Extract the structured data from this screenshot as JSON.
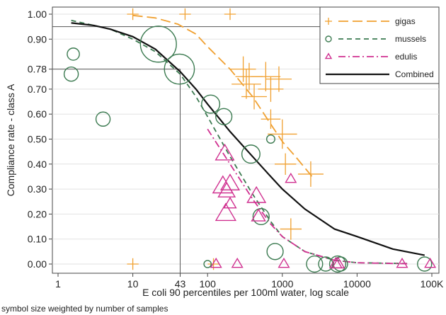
{
  "chart_data": {
    "type": "scatter",
    "x_scale": "log",
    "xlabel": "E coli 90 percentiles per 100ml water, log scale",
    "ylabel": "Compliance rate - class A",
    "note": "symbol size weighted by number of samples",
    "xlim": [
      1,
      100000
    ],
    "ylim": [
      0,
      1
    ],
    "grid": true,
    "legend_position": "top-right",
    "x_ticks": [
      {
        "value": 1,
        "label": "1"
      },
      {
        "value": 10,
        "label": "10"
      },
      {
        "value": 43,
        "label": "43"
      },
      {
        "value": 100,
        "label": "100"
      },
      {
        "value": 1000,
        "label": "1000"
      },
      {
        "value": 10000,
        "label": "10000"
      },
      {
        "value": 100000,
        "label": "100K"
      }
    ],
    "y_ticks": [
      {
        "value": 0.0,
        "label": "0.00"
      },
      {
        "value": 0.1,
        "label": "0.10"
      },
      {
        "value": 0.2,
        "label": "0.20"
      },
      {
        "value": 0.3,
        "label": "0.30"
      },
      {
        "value": 0.4,
        "label": "0.40"
      },
      {
        "value": 0.5,
        "label": "0.50"
      },
      {
        "value": 0.6,
        "label": "0.60"
      },
      {
        "value": 0.7,
        "label": "0.70"
      },
      {
        "value": 0.78,
        "label": "0.78"
      },
      {
        "value": 0.9,
        "label": "0.90"
      },
      {
        "value": 1.0,
        "label": "1.00"
      }
    ],
    "reference_lines": {
      "horizontal": [
        0.95,
        0.78
      ],
      "vertical": [
        43
      ]
    },
    "series": [
      {
        "name": "gigas",
        "marker": "plus",
        "color": "#f0a030",
        "points": [
          {
            "x": 10,
            "y": 1.0,
            "w": 0.3
          },
          {
            "x": 50,
            "y": 1.0,
            "w": 0.3
          },
          {
            "x": 200,
            "y": 1.0,
            "w": 0.3
          },
          {
            "x": 10,
            "y": 0.0,
            "w": 0.3
          },
          {
            "x": 120,
            "y": 0.0,
            "w": 0.3
          },
          {
            "x": 300,
            "y": 0.78,
            "w": 1.0
          },
          {
            "x": 360,
            "y": 0.75,
            "w": 1.1
          },
          {
            "x": 330,
            "y": 0.72,
            "w": 1.2
          },
          {
            "x": 420,
            "y": 0.67,
            "w": 1.0
          },
          {
            "x": 600,
            "y": 0.75,
            "w": 1.2
          },
          {
            "x": 700,
            "y": 0.7,
            "w": 1.0
          },
          {
            "x": 900,
            "y": 0.74,
            "w": 1.0
          },
          {
            "x": 1000,
            "y": 0.52,
            "w": 1.2
          },
          {
            "x": 1100,
            "y": 0.4,
            "w": 0.8
          },
          {
            "x": 2400,
            "y": 0.36,
            "w": 1.0
          },
          {
            "x": 1300,
            "y": 0.14,
            "w": 0.8
          },
          {
            "x": 700,
            "y": 0.58,
            "w": 0.7
          }
        ]
      },
      {
        "name": "mussels",
        "marker": "circle",
        "color": "#3b7a50",
        "points": [
          {
            "x": 1.6,
            "y": 0.84,
            "w": 0.4
          },
          {
            "x": 1.5,
            "y": 0.76,
            "w": 0.5
          },
          {
            "x": 4.0,
            "y": 0.58,
            "w": 0.5
          },
          {
            "x": 22,
            "y": 0.88,
            "w": 1.6
          },
          {
            "x": 42,
            "y": 0.78,
            "w": 1.3
          },
          {
            "x": 110,
            "y": 0.64,
            "w": 0.7
          },
          {
            "x": 165,
            "y": 0.59,
            "w": 0.6
          },
          {
            "x": 380,
            "y": 0.44,
            "w": 0.7
          },
          {
            "x": 700,
            "y": 0.5,
            "w": 0.2
          },
          {
            "x": 520,
            "y": 0.19,
            "w": 0.6
          },
          {
            "x": 800,
            "y": 0.05,
            "w": 0.6
          },
          {
            "x": 2700,
            "y": 0.0,
            "w": 0.6
          },
          {
            "x": 3800,
            "y": 0.0,
            "w": 0.5
          },
          {
            "x": 5500,
            "y": 0.0,
            "w": 0.6
          },
          {
            "x": 6000,
            "y": 0.0,
            "w": 0.5
          },
          {
            "x": 80000,
            "y": 0.0,
            "w": 0.5
          },
          {
            "x": 100,
            "y": 0.0,
            "w": 0.15
          }
        ]
      },
      {
        "name": "edulis",
        "marker": "triangle",
        "color": "#d03090",
        "points": [
          {
            "x": 170,
            "y": 0.44,
            "w": 0.8
          },
          {
            "x": 160,
            "y": 0.31,
            "w": 0.9
          },
          {
            "x": 200,
            "y": 0.32,
            "w": 0.8
          },
          {
            "x": 180,
            "y": 0.29,
            "w": 0.7
          },
          {
            "x": 175,
            "y": 0.2,
            "w": 0.9
          },
          {
            "x": 450,
            "y": 0.27,
            "w": 0.8
          },
          {
            "x": 200,
            "y": 0.24,
            "w": 0.4
          },
          {
            "x": 480,
            "y": 0.19,
            "w": 0.5
          },
          {
            "x": 1300,
            "y": 0.34,
            "w": 0.3
          },
          {
            "x": 130,
            "y": 0.0,
            "w": 0.3
          },
          {
            "x": 250,
            "y": 0.0,
            "w": 0.3
          },
          {
            "x": 1050,
            "y": 0.0,
            "w": 0.3
          },
          {
            "x": 5200,
            "y": 0.0,
            "w": 0.4
          },
          {
            "x": 5600,
            "y": 0.0,
            "w": 0.4
          },
          {
            "x": 40000,
            "y": 0.0,
            "w": 0.3
          },
          {
            "x": 95000,
            "y": 0.0,
            "w": 0.3
          }
        ]
      }
    ],
    "curves": [
      {
        "name": "gigas",
        "dash": "long",
        "color": "#f0a030",
        "points": [
          [
            10,
            0.995
          ],
          [
            20,
            0.985
          ],
          [
            40,
            0.96
          ],
          [
            70,
            0.92
          ],
          [
            100,
            0.87
          ],
          [
            200,
            0.78
          ],
          [
            400,
            0.67
          ],
          [
            700,
            0.56
          ],
          [
            1000,
            0.49
          ],
          [
            1500,
            0.43
          ],
          [
            2500,
            0.35
          ]
        ]
      },
      {
        "name": "mussels",
        "dash": "short",
        "color": "#3b7a50",
        "points": [
          [
            1.5,
            0.975
          ],
          [
            3,
            0.955
          ],
          [
            5,
            0.94
          ],
          [
            10,
            0.9
          ],
          [
            20,
            0.85
          ],
          [
            43,
            0.76
          ],
          [
            70,
            0.67
          ],
          [
            100,
            0.59
          ],
          [
            200,
            0.43
          ],
          [
            400,
            0.28
          ],
          [
            700,
            0.17
          ],
          [
            1000,
            0.11
          ],
          [
            2000,
            0.05
          ],
          [
            5000,
            0.015
          ],
          [
            10000,
            0.005
          ],
          [
            50000,
            0.002
          ]
        ]
      },
      {
        "name": "edulis",
        "dash": "dashdot",
        "color": "#d03090",
        "points": [
          [
            100,
            0.54
          ],
          [
            200,
            0.4
          ],
          [
            400,
            0.26
          ],
          [
            700,
            0.16
          ],
          [
            1000,
            0.11
          ],
          [
            2000,
            0.05
          ],
          [
            5000,
            0.015
          ],
          [
            10000,
            0.005
          ],
          [
            50000,
            0.001
          ]
        ]
      },
      {
        "name": "Combined",
        "dash": "solid",
        "color": "#111111",
        "points": [
          [
            1.5,
            0.965
          ],
          [
            3,
            0.955
          ],
          [
            5,
            0.94
          ],
          [
            10,
            0.91
          ],
          [
            20,
            0.86
          ],
          [
            43,
            0.77
          ],
          [
            70,
            0.7
          ],
          [
            100,
            0.64
          ],
          [
            200,
            0.53
          ],
          [
            400,
            0.43
          ],
          [
            700,
            0.35
          ],
          [
            1000,
            0.3
          ],
          [
            2000,
            0.22
          ],
          [
            5000,
            0.14
          ],
          [
            10000,
            0.11
          ],
          [
            30000,
            0.06
          ],
          [
            80000,
            0.035
          ]
        ]
      }
    ],
    "legend": [
      {
        "label": "gigas",
        "marker": "plus",
        "dash": "long",
        "color": "#f0a030"
      },
      {
        "label": "mussels",
        "marker": "circle",
        "dash": "short",
        "color": "#3b7a50"
      },
      {
        "label": "edulis",
        "marker": "triangle",
        "dash": "dashdot",
        "color": "#d03090"
      },
      {
        "label": "Combined",
        "marker": "none",
        "dash": "solid",
        "color": "#111111"
      }
    ]
  }
}
